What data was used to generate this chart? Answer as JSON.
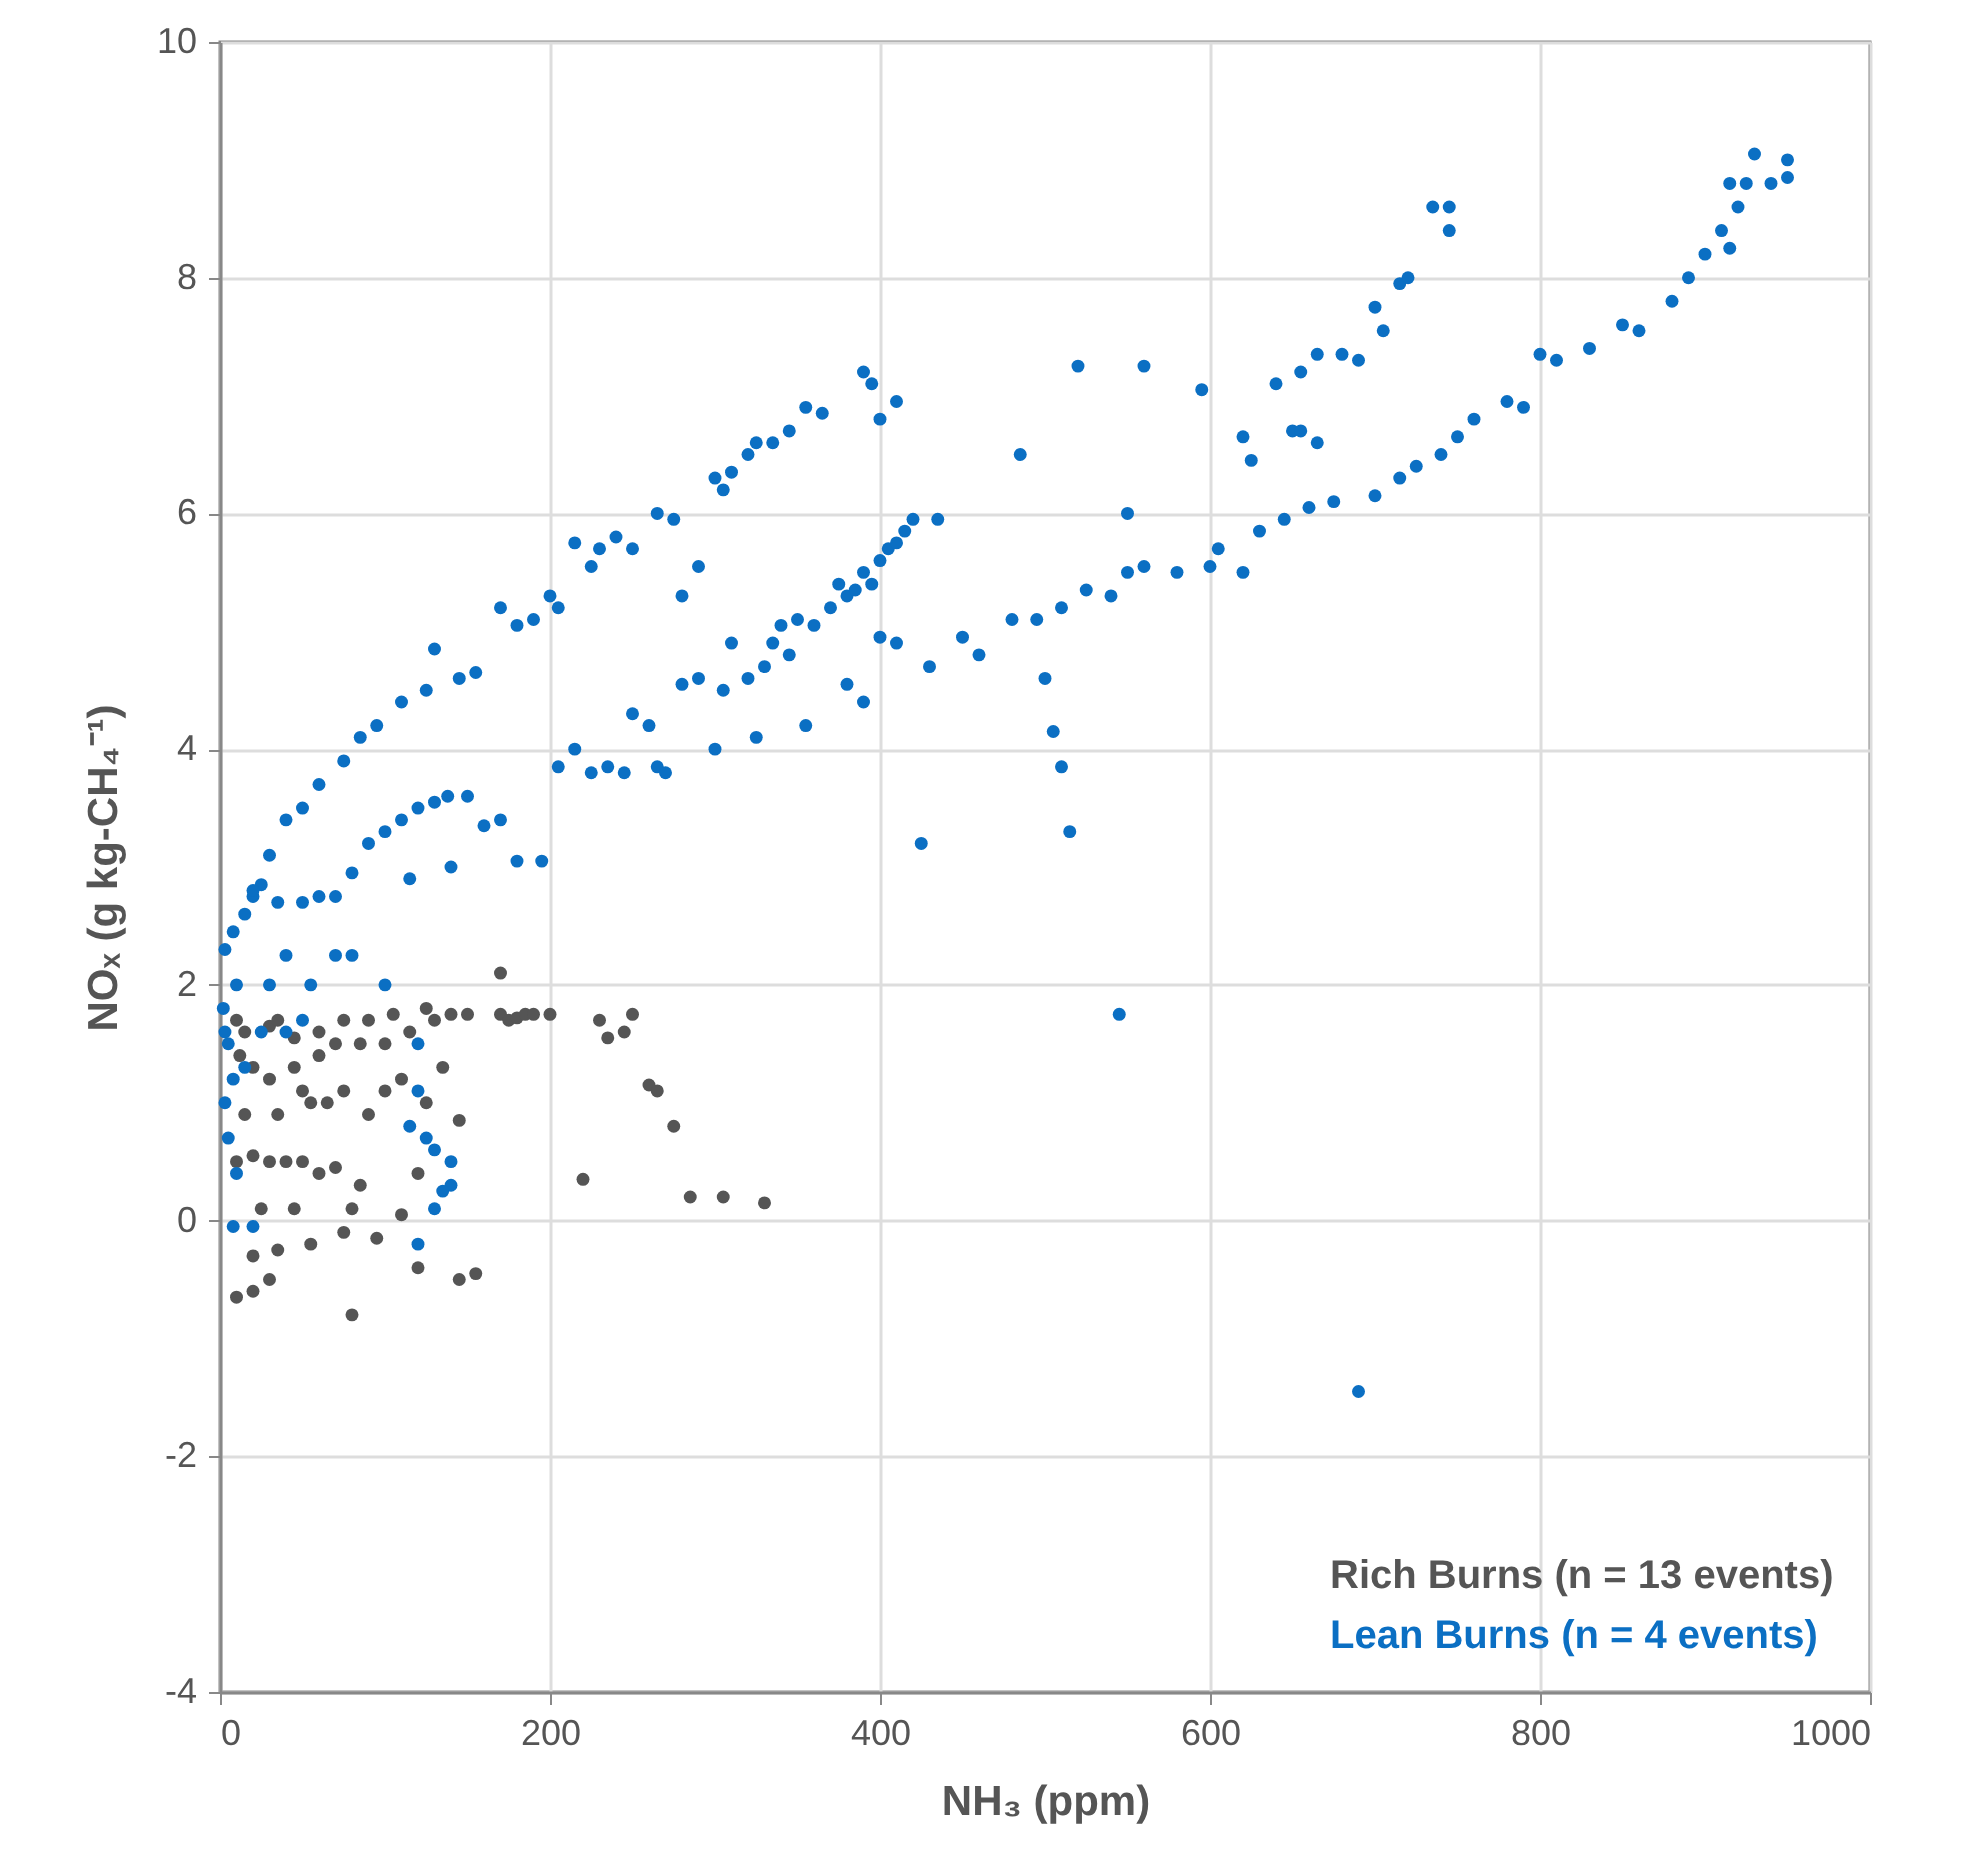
{
  "chart_data": {
    "type": "scatter",
    "xlabel": "NH₃ (ppm)",
    "ylabel": "NOₓ (g kg-CH₄⁻¹)",
    "xlim": [
      0,
      1000
    ],
    "ylim": [
      -4,
      10
    ],
    "xticks": [
      0,
      200,
      400,
      600,
      800,
      1000
    ],
    "yticks": [
      -4,
      -2,
      0,
      2,
      4,
      6,
      8,
      10
    ],
    "grid": true,
    "legend": "bottom right",
    "marker": "circle",
    "series": [
      {
        "name": "Rich Burns (n = 13 events)",
        "color": "#555555",
        "x": [
          10,
          20,
          30,
          80,
          120,
          145,
          155,
          75,
          95,
          20,
          35,
          55,
          25,
          45,
          80,
          110,
          10,
          20,
          30,
          40,
          50,
          60,
          70,
          85,
          120,
          15,
          35,
          55,
          65,
          75,
          90,
          100,
          110,
          125,
          145,
          20,
          30,
          45,
          60,
          70,
          85,
          100,
          115,
          130,
          140,
          15,
          30,
          45,
          60,
          75,
          90,
          105,
          125,
          170,
          175,
          180,
          185,
          190,
          200,
          170,
          230,
          235,
          245,
          250,
          260,
          265,
          275,
          220,
          285,
          305,
          330,
          150,
          135,
          50,
          35,
          10,
          12
        ],
        "values": [
          -0.65,
          -0.6,
          -0.5,
          -0.8,
          -0.4,
          -0.5,
          -0.45,
          -0.1,
          -0.15,
          -0.3,
          -0.25,
          -0.2,
          0.1,
          0.1,
          0.1,
          0.05,
          0.5,
          0.55,
          0.5,
          0.5,
          0.5,
          0.4,
          0.45,
          0.3,
          0.4,
          0.9,
          0.9,
          1.0,
          1.0,
          1.1,
          0.9,
          1.1,
          1.2,
          1.0,
          0.85,
          1.3,
          1.2,
          1.3,
          1.4,
          1.5,
          1.5,
          1.5,
          1.6,
          1.7,
          1.75,
          1.6,
          1.65,
          1.55,
          1.6,
          1.7,
          1.7,
          1.75,
          1.8,
          1.75,
          1.7,
          1.72,
          1.75,
          1.75,
          1.75,
          2.1,
          1.7,
          1.55,
          1.6,
          1.75,
          1.15,
          1.1,
          0.8,
          0.35,
          0.2,
          0.2,
          0.15,
          1.75,
          1.3,
          1.1,
          1.7,
          1.7,
          1.4
        ]
      },
      {
        "name": "Lean Burns (n = 4 events)",
        "color": "#0b6fc3",
        "x": [
          3,
          8,
          15,
          20,
          25,
          35,
          50,
          60,
          70,
          80,
          90,
          100,
          110,
          120,
          130,
          138,
          20,
          30,
          40,
          50,
          60,
          75,
          85,
          95,
          110,
          125,
          130,
          145,
          155,
          170,
          180,
          190,
          200,
          205,
          215,
          225,
          230,
          240,
          250,
          265,
          275,
          280,
          290,
          300,
          305,
          310,
          320,
          325,
          335,
          345,
          355,
          365,
          390,
          395,
          400,
          410,
          115,
          140,
          150,
          160,
          170,
          180,
          195,
          205,
          215,
          225,
          235,
          250,
          245,
          260,
          265,
          270,
          280,
          290,
          300,
          305,
          310,
          320,
          330,
          335,
          340,
          350,
          360,
          370,
          375,
          380,
          385,
          390,
          395,
          400,
          405,
          410,
          415,
          420,
          435,
          380,
          400,
          390,
          355,
          325,
          345,
          410,
          430,
          450,
          460,
          480,
          495,
          510,
          525,
          540,
          550,
          560,
          580,
          600,
          605,
          620,
          630,
          645,
          660,
          675,
          700,
          715,
          725,
          740,
          750,
          760,
          780,
          790,
          800,
          810,
          830,
          850,
          860,
          880,
          890,
          900,
          910,
          915,
          920,
          925,
          940,
          950,
          930,
          950,
          915,
          485,
          520,
          560,
          595,
          620,
          625,
          650,
          655,
          665,
          640,
          655,
          665,
          680,
          690,
          700,
          705,
          715,
          720,
          735,
          745,
          745,
          425,
          500,
          505,
          510,
          515,
          545,
          690,
          550,
          2,
          3,
          5,
          3,
          8,
          5,
          10,
          8,
          20,
          15,
          25,
          40,
          50,
          30,
          55,
          70,
          80,
          100,
          120,
          120,
          115,
          125,
          130,
          140,
          140,
          130,
          120,
          135,
          10,
          40
        ],
        "values": [
          2.3,
          2.45,
          2.6,
          2.75,
          2.85,
          2.7,
          2.7,
          2.75,
          2.75,
          2.95,
          3.2,
          3.3,
          3.4,
          3.5,
          3.55,
          3.6,
          2.8,
          3.1,
          3.4,
          3.5,
          3.7,
          3.9,
          4.1,
          4.2,
          4.4,
          4.5,
          4.85,
          4.6,
          4.65,
          5.2,
          5.05,
          5.1,
          5.3,
          5.2,
          5.75,
          5.55,
          5.7,
          5.8,
          5.7,
          6.0,
          5.95,
          5.3,
          5.55,
          6.3,
          6.2,
          6.35,
          6.5,
          6.6,
          6.6,
          6.7,
          6.9,
          6.85,
          7.2,
          7.1,
          6.8,
          6.95,
          2.9,
          3.0,
          3.6,
          3.35,
          3.4,
          3.05,
          3.05,
          3.85,
          4.0,
          3.8,
          3.85,
          4.3,
          3.8,
          4.2,
          3.85,
          3.8,
          4.55,
          4.6,
          4.0,
          4.5,
          4.9,
          4.6,
          4.7,
          4.9,
          5.05,
          5.1,
          5.05,
          5.2,
          5.4,
          5.3,
          5.35,
          5.5,
          5.4,
          5.6,
          5.7,
          5.75,
          5.85,
          5.95,
          5.95,
          4.55,
          4.95,
          4.4,
          4.2,
          4.1,
          4.8,
          4.9,
          4.7,
          4.95,
          4.8,
          5.1,
          5.1,
          5.2,
          5.35,
          5.3,
          5.5,
          5.55,
          5.5,
          5.55,
          5.7,
          5.5,
          5.85,
          5.95,
          6.05,
          6.1,
          6.15,
          6.3,
          6.4,
          6.5,
          6.65,
          6.8,
          6.95,
          6.9,
          7.35,
          7.3,
          7.4,
          7.6,
          7.55,
          7.8,
          8.0,
          8.2,
          8.4,
          8.25,
          8.6,
          8.8,
          8.8,
          8.85,
          9.05,
          9.0,
          8.8,
          6.5,
          7.25,
          7.25,
          7.05,
          6.65,
          6.45,
          6.7,
          6.7,
          6.6,
          7.1,
          7.2,
          7.35,
          7.35,
          7.3,
          7.75,
          7.55,
          7.95,
          8.0,
          8.6,
          8.6,
          8.4,
          3.2,
          4.6,
          4.15,
          3.85,
          3.3,
          1.75,
          -1.45,
          6.0,
          1.8,
          1.6,
          1.5,
          1.0,
          1.2,
          0.7,
          0.4,
          -0.05,
          -0.05,
          1.3,
          1.6,
          1.6,
          1.7,
          2.0,
          2.0,
          2.25,
          2.25,
          2.0,
          1.5,
          1.1,
          0.8,
          0.7,
          0.6,
          0.5,
          0.3,
          0.1,
          -0.2,
          0.25,
          2.0,
          2.25
        ]
      }
    ]
  }
}
